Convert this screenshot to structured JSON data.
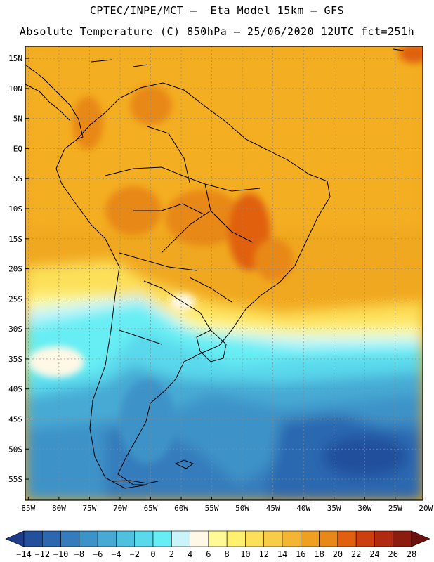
{
  "header": {
    "line1": "CPTEC/INPE/MCT –  Eta Model 15km – GFS",
    "line2": "Absolute Temperature (C) 850hPa – 25/06/2020 12UTC fct=251h"
  },
  "map": {
    "lat_labels": [
      "15N",
      "10N",
      "5N",
      "EQ",
      "5S",
      "10S",
      "15S",
      "20S",
      "25S",
      "30S",
      "35S",
      "40S",
      "45S",
      "50S",
      "55S"
    ],
    "lon_labels": [
      "85W",
      "80W",
      "75W",
      "70W",
      "65W",
      "60W",
      "55W",
      "50W",
      "45W",
      "40W",
      "35W",
      "30W",
      "25W",
      "20W"
    ],
    "lat_range": [
      17,
      -58.5
    ],
    "lon_range": [
      -85.5,
      -20.5
    ]
  },
  "colorbar": {
    "labels": [
      "−14",
      "−12",
      "−10",
      "−8",
      "−6",
      "−4",
      "−2",
      "0",
      "2",
      "4",
      "6",
      "8",
      "10",
      "12",
      "14",
      "16",
      "18",
      "20",
      "22",
      "24",
      "26",
      "28"
    ],
    "colors": [
      "#1e3c8a",
      "#22509c",
      "#2c68b0",
      "#347cbc",
      "#3c93c8",
      "#46aad4",
      "#50c0e0",
      "#5ad8ec",
      "#66eef4",
      "#c8f4fa",
      "#fff8e6",
      "#fffa96",
      "#fff070",
      "#fce05a",
      "#f8cc46",
      "#f4b632",
      "#f0a020",
      "#e88818",
      "#e06010",
      "#cc4010",
      "#b02a10",
      "#8c1c0e",
      "#6c100c"
    ]
  },
  "palette": {
    "border": "#000000",
    "grid": "#888888"
  }
}
